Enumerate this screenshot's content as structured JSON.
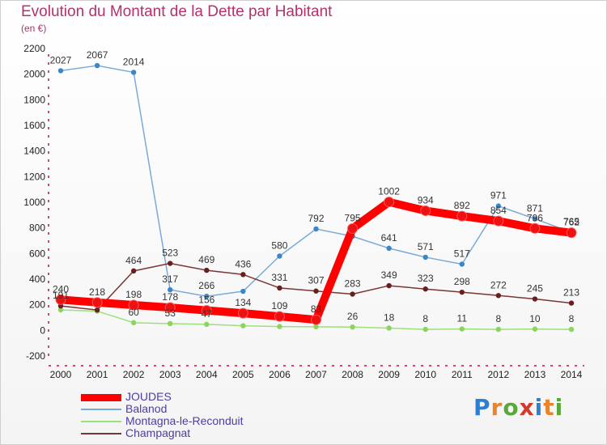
{
  "title": "Evolution du Montant de la Dette par Habitant",
  "subtitle": "(en €)",
  "brand": "Proxiti",
  "brand_colors": [
    "#2f7fd0",
    "#e8842a",
    "#5aa83a",
    "#d23a2a",
    "#2f7fd0",
    "#e8842a",
    "#5aa83a"
  ],
  "chart_data": {
    "type": "line",
    "x": [
      2000,
      2001,
      2002,
      2003,
      2004,
      2005,
      2006,
      2007,
      2008,
      2009,
      2010,
      2011,
      2012,
      2013,
      2014
    ],
    "ylim": [
      -200,
      2200
    ],
    "yticks": [
      -200,
      0,
      200,
      400,
      600,
      800,
      1000,
      1200,
      1400,
      1600,
      1800,
      2000,
      2200
    ],
    "grid": false,
    "legend_position": "bottom",
    "series": [
      {
        "name": "Balanod",
        "color": "#7aaad8",
        "marker": "#3a86c8",
        "values": [
          2027,
          2067,
          2014,
          317,
          266,
          305,
          580,
          792,
          734,
          641,
          571,
          517,
          971,
          871,
          765
        ],
        "labels": [
          "2027",
          "2067",
          "2014",
          "317",
          "266",
          "",
          "580",
          "792",
          "",
          "641",
          "571",
          "517",
          "971",
          "871",
          "765"
        ]
      },
      {
        "name": "Montagna-le-Reconduit",
        "color": "#9be07a",
        "marker": "#8bd45e",
        "values": [
          160,
          150,
          60,
          53,
          47,
          36,
          30,
          28,
          26,
          18,
          8,
          11,
          8,
          10,
          8
        ],
        "labels": [
          "",
          "",
          "60",
          "53",
          "47",
          "",
          "",
          "",
          "26",
          "18",
          "8",
          "11",
          "8",
          "10",
          "8"
        ]
      },
      {
        "name": "Champagnat",
        "color": "#7a3535",
        "marker": "#6a1f1f",
        "values": [
          191,
          159,
          464,
          523,
          469,
          436,
          331,
          307,
          283,
          349,
          323,
          298,
          272,
          245,
          213
        ],
        "labels": [
          "191",
          "",
          "464",
          "523",
          "469",
          "436",
          "331",
          "307",
          "283",
          "349",
          "323",
          "298",
          "272",
          "245",
          "213"
        ]
      },
      {
        "name": "JOUDES",
        "color": "#ff0000",
        "marker": "#ee1111",
        "thick": true,
        "values": [
          240,
          218,
          198,
          178,
          156,
          134,
          109,
          83,
          795,
          1002,
          934,
          892,
          854,
          796,
          762
        ],
        "labels": [
          "240",
          "218",
          "198",
          "178",
          "156",
          "134",
          "109",
          "83",
          "795",
          "1002",
          "934",
          "892",
          "854",
          "796",
          "762"
        ]
      }
    ]
  },
  "legend": [
    {
      "name": "JOUDES",
      "color": "#ff0000",
      "thick": true
    },
    {
      "name": "Balanod",
      "color": "#7aaad8",
      "thick": false
    },
    {
      "name": "Montagna-le-Reconduit",
      "color": "#9be07a",
      "thick": false
    },
    {
      "name": "Champagnat",
      "color": "#7a3535",
      "thick": false
    }
  ]
}
